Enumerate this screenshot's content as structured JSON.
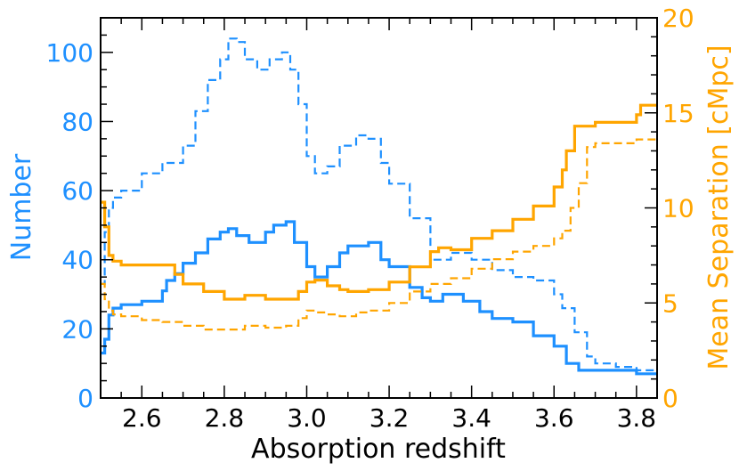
{
  "chart_data": {
    "type": "line",
    "xlabel": "Absorption redshift",
    "ylabel_left": "Number",
    "ylabel_right": "Mean Separation [cMpc]",
    "xlim": [
      2.5,
      3.85
    ],
    "ylim_left": [
      0,
      110
    ],
    "ylim_right": [
      0,
      20
    ],
    "x_ticks": [
      "2.6",
      "2.8",
      "3.0",
      "3.2",
      "3.4",
      "3.6",
      "3.8"
    ],
    "y_ticks_left": [
      "0",
      "20",
      "40",
      "60",
      "80",
      "100"
    ],
    "y_ticks_right": [
      "0",
      "5",
      "10",
      "15",
      "20"
    ],
    "colors": {
      "left": "#1e90ff",
      "right": "#ffa500"
    },
    "series": [
      {
        "axis": "left",
        "style": "solid",
        "color": "#1e90ff",
        "step": true,
        "x": [
          2.5,
          2.51,
          2.52,
          2.53,
          2.55,
          2.6,
          2.65,
          2.66,
          2.68,
          2.7,
          2.73,
          2.76,
          2.79,
          2.81,
          2.83,
          2.86,
          2.9,
          2.92,
          2.95,
          2.97,
          3.0,
          3.02,
          3.05,
          3.08,
          3.1,
          3.15,
          3.18,
          3.2,
          3.25,
          3.28,
          3.3,
          3.33,
          3.38,
          3.42,
          3.45,
          3.5,
          3.55,
          3.6,
          3.63,
          3.66,
          3.7,
          3.75,
          3.8,
          3.85
        ],
        "y": [
          13,
          17,
          24,
          26,
          27,
          28,
          31,
          34,
          36,
          39,
          42,
          46,
          48,
          49,
          47,
          45,
          48,
          50,
          51,
          45,
          38,
          35,
          38,
          42,
          44,
          45,
          40,
          38,
          32,
          29,
          28,
          30,
          28,
          25,
          23,
          22,
          18,
          15,
          10,
          8,
          8,
          8,
          7,
          7
        ]
      },
      {
        "axis": "left",
        "style": "dashed",
        "color": "#1e90ff",
        "step": true,
        "x": [
          2.5,
          2.51,
          2.52,
          2.53,
          2.55,
          2.6,
          2.65,
          2.7,
          2.73,
          2.76,
          2.79,
          2.81,
          2.83,
          2.85,
          2.88,
          2.91,
          2.94,
          2.96,
          2.98,
          3.0,
          3.02,
          3.05,
          3.08,
          3.12,
          3.15,
          3.18,
          3.2,
          3.25,
          3.3,
          3.35,
          3.4,
          3.45,
          3.5,
          3.55,
          3.6,
          3.62,
          3.65,
          3.68,
          3.7,
          3.75,
          3.8,
          3.85
        ],
        "y": [
          33,
          48,
          55,
          58,
          60,
          65,
          68,
          73,
          83,
          92,
          98,
          104,
          103,
          98,
          95,
          98,
          100,
          95,
          85,
          70,
          65,
          67,
          73,
          76,
          75,
          68,
          62,
          52,
          40,
          42,
          40,
          37,
          35,
          34,
          30,
          26,
          19,
          12,
          10,
          9,
          8,
          8
        ]
      },
      {
        "axis": "right",
        "style": "solid",
        "color": "#ffa500",
        "step": true,
        "x": [
          2.5,
          2.51,
          2.52,
          2.53,
          2.55,
          2.6,
          2.65,
          2.68,
          2.7,
          2.75,
          2.8,
          2.85,
          2.9,
          2.95,
          2.98,
          3.0,
          3.02,
          3.05,
          3.08,
          3.1,
          3.15,
          3.2,
          3.25,
          3.3,
          3.32,
          3.35,
          3.4,
          3.45,
          3.5,
          3.55,
          3.6,
          3.62,
          3.63,
          3.65,
          3.7,
          3.8,
          3.81,
          3.85
        ],
        "y": [
          10.3,
          9.0,
          7.5,
          7.2,
          7.0,
          7.0,
          7.0,
          6.5,
          6.0,
          5.6,
          5.2,
          5.4,
          5.2,
          5.2,
          5.6,
          6.1,
          6.2,
          5.9,
          5.7,
          5.6,
          5.7,
          6.1,
          6.9,
          7.7,
          7.9,
          7.8,
          8.4,
          8.8,
          9.4,
          10.1,
          11.1,
          12.0,
          13.0,
          14.3,
          14.5,
          14.9,
          15.4,
          15.4
        ]
      },
      {
        "axis": "right",
        "style": "dashed",
        "color": "#ffa500",
        "step": true,
        "x": [
          2.5,
          2.51,
          2.52,
          2.53,
          2.55,
          2.6,
          2.65,
          2.7,
          2.75,
          2.8,
          2.85,
          2.9,
          2.95,
          2.98,
          3.0,
          3.02,
          3.05,
          3.08,
          3.12,
          3.15,
          3.2,
          3.25,
          3.3,
          3.35,
          3.4,
          3.45,
          3.5,
          3.55,
          3.6,
          3.62,
          3.64,
          3.66,
          3.68,
          3.7,
          3.8,
          3.85
        ],
        "y": [
          6.0,
          5.2,
          4.6,
          4.4,
          4.3,
          4.1,
          4.0,
          3.8,
          3.6,
          3.6,
          3.8,
          3.7,
          3.8,
          4.2,
          4.6,
          4.5,
          4.4,
          4.3,
          4.5,
          4.6,
          5.0,
          5.6,
          6.0,
          6.3,
          6.8,
          7.3,
          7.7,
          8.0,
          8.4,
          8.8,
          10.0,
          11.3,
          13.2,
          13.4,
          13.6,
          13.6
        ]
      }
    ],
    "grid": false,
    "legend": "none"
  }
}
